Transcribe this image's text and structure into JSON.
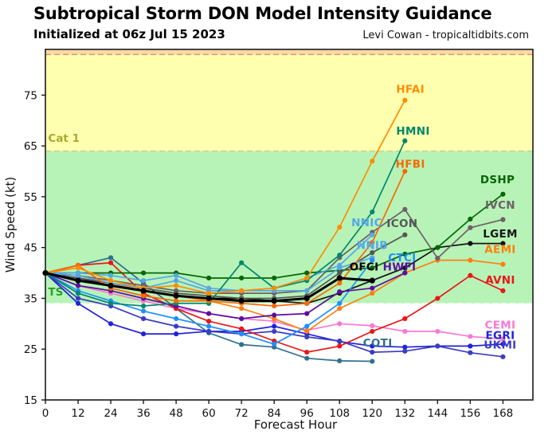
{
  "header": {
    "title": "Subtropical Storm DON Model Intensity Guidance",
    "subtitle": "Initialized at 06z Jul 15 2023",
    "credit": "Levi Cowan - tropicaltidbits.com"
  },
  "chart_data": {
    "type": "line",
    "title": "Subtropical Storm DON Model Intensity Guidance",
    "xlabel": "Forecast Hour",
    "ylabel": "Wind Speed (kt)",
    "x_range": [
      0,
      179
    ],
    "y_range": [
      15,
      84
    ],
    "x_ticks": [
      0,
      12,
      24,
      36,
      48,
      60,
      72,
      84,
      96,
      108,
      120,
      132,
      144,
      156,
      168
    ],
    "y_ticks": [
      15,
      25,
      35,
      45,
      55,
      65,
      75
    ],
    "grid": false,
    "legend_position": "end-of-line labels",
    "bands": [
      {
        "from": 34,
        "to": 64,
        "color": "#b7f3b7",
        "meaning": "Tropical Storm"
      },
      {
        "from": 64,
        "to": 83,
        "color": "#ffffb0",
        "meaning": "Category 1"
      },
      {
        "from": 83,
        "to": 84,
        "color": "#ffd9a8",
        "meaning": "Category 2"
      }
    ],
    "thresholds": [
      {
        "kt": 34,
        "color": "#f2fff2",
        "style": "dashed"
      },
      {
        "kt": 64,
        "color": "#cfcf8a",
        "style": "dashed"
      },
      {
        "kt": 83,
        "color": "#dd9a66",
        "style": "dashed"
      }
    ],
    "annotations": [
      {
        "text": "TS",
        "x": 1,
        "y": 36.3,
        "color": "#2ca02c"
      },
      {
        "text": "Cat 1",
        "x": 1,
        "y": 66.6,
        "color": "#a8a832"
      }
    ],
    "x_hours": [
      0,
      12,
      24,
      36,
      48,
      60,
      72,
      84,
      96,
      108,
      120,
      132,
      144,
      156,
      168
    ],
    "series": [
      {
        "name": "COTI",
        "color": "#31708f",
        "values": [
          40,
          41.5,
          43,
          38,
          33,
          28.2,
          25.9,
          25.4,
          23.2,
          22.7,
          22.6,
          null,
          null,
          null,
          null
        ],
        "label": {
          "x": 122,
          "y": 26.3
        }
      },
      {
        "name": "CEMI",
        "color": "#f879d4",
        "values": [
          40,
          37.5,
          36,
          34.5,
          33,
          32,
          31,
          30.5,
          28.7,
          30,
          29.6,
          28.5,
          28.5,
          27.5,
          27
        ],
        "label": {
          "x": 167,
          "y": 29.8
        }
      },
      {
        "name": "EGRI",
        "color": "#2121dd",
        "values": [
          40,
          34,
          30,
          28,
          28,
          28.5,
          28.5,
          29.5,
          28,
          26.5,
          25.6,
          25.4,
          25.6,
          25.6,
          26
        ],
        "label": {
          "x": 167,
          "y": 27.8
        }
      },
      {
        "name": "UKMI",
        "color": "#3b3bc4",
        "values": [
          40,
          35,
          33.5,
          31,
          29.5,
          28.5,
          28,
          28.5,
          27.4,
          26.6,
          24.4,
          24.6,
          25.6,
          24.3,
          23.5
        ],
        "label": {
          "x": 167,
          "y": 25.9
        }
      },
      {
        "name": "AVNI",
        "color": "#ea1717",
        "values": [
          40,
          41.5,
          42,
          36,
          33,
          30.5,
          29,
          26.6,
          24.4,
          25.6,
          28.5,
          31,
          35,
          39.5,
          36.5
        ],
        "label": {
          "x": 167,
          "y": 38.7
        }
      },
      {
        "name": "AEMI",
        "color": "#ff7f0e",
        "values": [
          40,
          39,
          38,
          36.5,
          35.5,
          34.5,
          33,
          31,
          28.5,
          33,
          36,
          40,
          42.5,
          42.5,
          41.7
        ],
        "label": {
          "x": 167,
          "y": 44.7
        }
      },
      {
        "name": "LGEM",
        "color": "#141414",
        "values": [
          40,
          39,
          37.5,
          36.5,
          35.5,
          35,
          35,
          34.5,
          34,
          36,
          38.5,
          41,
          45,
          45.8,
          45.8
        ],
        "label": {
          "x": 167,
          "y": 47.8
        }
      },
      {
        "name": "IVCN",
        "color": "#6e5f68",
        "values": [
          40,
          39.5,
          38.5,
          37.5,
          36.5,
          36,
          36,
          36,
          36.5,
          43,
          48,
          52.5,
          42.9,
          48.9,
          50.5
        ],
        "label": {
          "x": 167,
          "y": 53.4
        }
      },
      {
        "name": "DSHP",
        "color": "#076607",
        "values": [
          40,
          40,
          40,
          40,
          40,
          39,
          39,
          39,
          40,
          40.5,
          41,
          43.7,
          45,
          50.6,
          55.5
        ],
        "label": {
          "x": 166,
          "y": 58.4
        }
      },
      {
        "name": "ICON",
        "color": "#565656",
        "values": [
          40,
          39,
          38,
          37,
          36,
          35.5,
          35,
          35,
          35.5,
          40,
          44,
          47.5,
          null,
          null,
          null
        ],
        "label": {
          "x": 131,
          "y": 49.8
        }
      },
      {
        "name": "NNIC",
        "color": "#57a7e8",
        "values": [
          40,
          40,
          39.5,
          38.5,
          39.5,
          37,
          36.5,
          37,
          39,
          41.5,
          47.5,
          null,
          null,
          null,
          null
        ],
        "label": {
          "x": 118,
          "y": 50
        }
      },
      {
        "name": "NNIB",
        "color": "#57a7e8",
        "values": [
          40,
          39.5,
          38,
          37,
          38.5,
          36.5,
          36.5,
          36.5,
          36.5,
          41,
          43,
          null,
          null,
          null,
          null
        ],
        "label": {
          "x": 120,
          "y": 45.5
        }
      },
      {
        "name": "CTCI",
        "color": "#1e90ff",
        "values": [
          40,
          36.5,
          34.5,
          32.5,
          31,
          29.5,
          28,
          26,
          29.5,
          34,
          42.5,
          null,
          null,
          null,
          null
        ],
        "label": {
          "x": 131,
          "y": 43.1
        }
      },
      {
        "name": "HWFI",
        "color": "#5c0f9e",
        "values": [
          40,
          37.5,
          36.5,
          35,
          33.5,
          32,
          31,
          31.7,
          32,
          36.3,
          37,
          40,
          null,
          null,
          null
        ],
        "label": {
          "x": 130,
          "y": 41.3
        }
      },
      {
        "name": "HMNI",
        "color": "#00876c",
        "values": [
          40,
          36,
          34,
          33.5,
          34,
          34,
          42,
          37,
          38.5,
          43.5,
          52,
          66,
          null,
          null,
          null
        ],
        "label": {
          "x": 135,
          "y": 68
        }
      },
      {
        "name": "HFBI",
        "color": "#f96802",
        "values": [
          40,
          41.5,
          37,
          35.5,
          34.5,
          34.5,
          34,
          33.5,
          34,
          38,
          46,
          60,
          null,
          null,
          null
        ],
        "label": {
          "x": 134,
          "y": 61.5
        }
      },
      {
        "name": "HFAI",
        "color": "#ff8c00",
        "values": [
          40,
          41,
          38.5,
          37,
          37.5,
          36,
          36.5,
          37,
          39,
          49,
          62,
          74,
          null,
          null,
          null
        ],
        "label": {
          "x": 134,
          "y": 76.2
        }
      },
      {
        "name": "OFCI",
        "color": "#000000",
        "thick": true,
        "values": [
          40,
          38.5,
          37.5,
          36.5,
          35.5,
          35,
          34.5,
          34.5,
          35,
          39,
          38.5,
          null,
          null,
          null,
          null
        ],
        "label": {
          "x": 117,
          "y": 41.3
        }
      }
    ]
  }
}
